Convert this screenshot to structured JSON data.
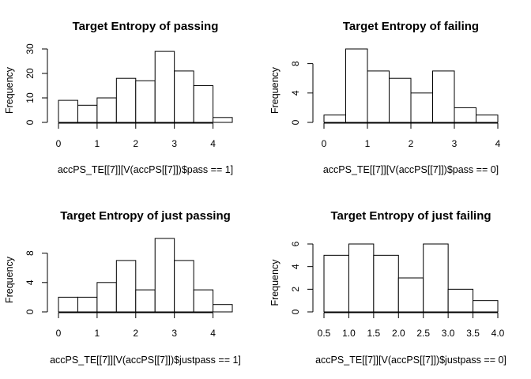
{
  "chart_data": [
    {
      "type": "bar",
      "title": "Target Entropy of passing",
      "xlabel": "accPS_TE[[7]][V(accPS[[7]])$pass == 1]",
      "ylabel": "Frequency",
      "bin_edges": [
        0,
        0.5,
        1,
        1.5,
        2,
        2.5,
        3,
        3.5,
        4,
        4.5
      ],
      "values": [
        9,
        7,
        10,
        18,
        17,
        29,
        21,
        15,
        2
      ],
      "xticks": [
        0,
        1,
        2,
        3,
        4
      ],
      "xtick_labels": [
        "0",
        "1",
        "2",
        "3",
        "4"
      ],
      "yticks": [
        0,
        10,
        20,
        30
      ],
      "ytick_labels": [
        "0",
        "10",
        "20",
        "30"
      ],
      "ylim": [
        0,
        30
      ],
      "grid": false
    },
    {
      "type": "bar",
      "title": "Target Entropy of failing",
      "xlabel": "accPS_TE[[7]][V(accPS[[7]])$pass == 0]",
      "ylabel": "Frequency",
      "bin_edges": [
        0,
        0.5,
        1,
        1.5,
        2,
        2.5,
        3,
        3.5,
        4
      ],
      "values": [
        1,
        10,
        7,
        6,
        4,
        7,
        2,
        1
      ],
      "xticks": [
        0,
        1,
        2,
        3,
        4
      ],
      "xtick_labels": [
        "0",
        "1",
        "2",
        "3",
        "4"
      ],
      "yticks": [
        0,
        4,
        8
      ],
      "ytick_labels": [
        "0",
        "4",
        "8"
      ],
      "ylim": [
        0,
        10
      ],
      "grid": false
    },
    {
      "type": "bar",
      "title": "Target Entropy of just passing",
      "xlabel": "accPS_TE[[7]][V(accPS[[7]])$justpass == 1]",
      "ylabel": "Frequency",
      "bin_edges": [
        0,
        0.5,
        1,
        1.5,
        2,
        2.5,
        3,
        3.5,
        4,
        4.5
      ],
      "values": [
        2,
        2,
        4,
        7,
        3,
        10,
        7,
        3,
        1
      ],
      "xticks": [
        0,
        1,
        2,
        3,
        4
      ],
      "xtick_labels": [
        "0",
        "1",
        "2",
        "3",
        "4"
      ],
      "yticks": [
        0,
        4,
        8
      ],
      "ytick_labels": [
        "0",
        "4",
        "8"
      ],
      "ylim": [
        0,
        10
      ],
      "grid": false
    },
    {
      "type": "bar",
      "title": "Target Entropy of just failing",
      "xlabel": "accPS_TE[[7]][V(accPS[[7]])$justpass == 0]",
      "ylabel": "Frequency",
      "bin_edges": [
        0.5,
        1,
        1.5,
        2,
        2.5,
        3,
        3.5,
        4
      ],
      "values": [
        5,
        6,
        5,
        3,
        6,
        2,
        1
      ],
      "xticks": [
        0.5,
        1,
        1.5,
        2,
        2.5,
        3,
        3.5,
        4
      ],
      "xtick_labels": [
        "0.5",
        "1.0",
        "1.5",
        "2.0",
        "2.5",
        "3.0",
        "3.5",
        "4.0"
      ],
      "yticks": [
        0,
        2,
        4,
        6
      ],
      "ytick_labels": [
        "0",
        "2",
        "4",
        "6"
      ],
      "ylim": [
        0,
        6
      ],
      "grid": false
    }
  ]
}
